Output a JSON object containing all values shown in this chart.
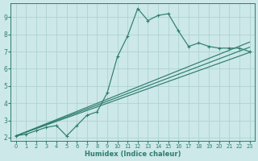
{
  "xlabel": "Humidex (Indice chaleur)",
  "xlim": [
    -0.5,
    23.5
  ],
  "ylim": [
    1.8,
    9.8
  ],
  "xticks": [
    0,
    1,
    2,
    3,
    4,
    5,
    6,
    7,
    8,
    9,
    10,
    11,
    12,
    13,
    14,
    15,
    16,
    17,
    18,
    19,
    20,
    21,
    22,
    23
  ],
  "yticks": [
    2,
    3,
    4,
    5,
    6,
    7,
    8,
    9
  ],
  "line_color": "#2e7d6e",
  "bg_color": "#cce8e8",
  "grid_color": "#aacfcf",
  "main_line": {
    "x": [
      0,
      1,
      2,
      3,
      4,
      5,
      6,
      7,
      8,
      9,
      10,
      11,
      12,
      13,
      14,
      15,
      16,
      17,
      18,
      19,
      20,
      21,
      22,
      23
    ],
    "y": [
      2.1,
      2.2,
      2.4,
      2.6,
      2.7,
      2.1,
      2.7,
      3.3,
      3.5,
      4.6,
      6.7,
      7.9,
      9.5,
      8.8,
      9.1,
      9.2,
      8.2,
      7.3,
      7.5,
      7.3,
      7.2,
      7.2,
      7.2,
      7.0
    ]
  },
  "straight_lines": [
    {
      "x": [
        0,
        23
      ],
      "y": [
        2.1,
        7.25
      ]
    },
    {
      "x": [
        0,
        23
      ],
      "y": [
        2.1,
        7.55
      ]
    },
    {
      "x": [
        0,
        23
      ],
      "y": [
        2.1,
        6.95
      ]
    }
  ]
}
